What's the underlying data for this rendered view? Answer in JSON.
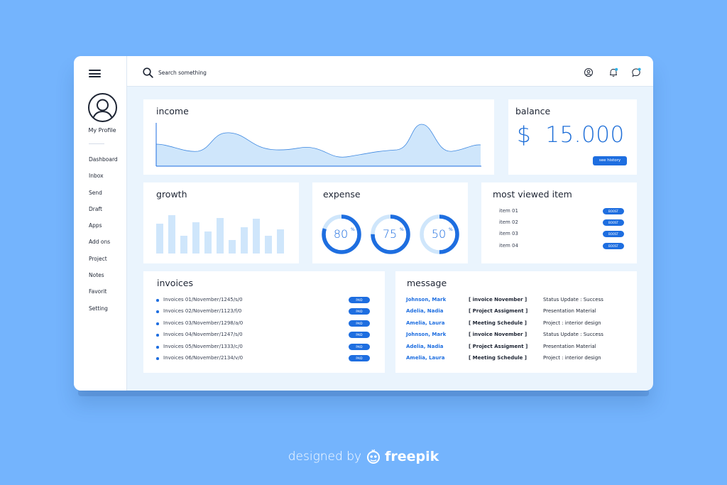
{
  "sidebar": {
    "profile_label": "My Profile",
    "items": [
      {
        "label": "Dashboard"
      },
      {
        "label": "Inbox"
      },
      {
        "label": "Send"
      },
      {
        "label": "Draft"
      },
      {
        "label": "Apps"
      },
      {
        "label": "Add ons"
      },
      {
        "label": "Project"
      },
      {
        "label": "Notes"
      },
      {
        "label": "Favorit"
      },
      {
        "label": "Setting"
      }
    ]
  },
  "header": {
    "search_placeholder": "Search something",
    "icons": [
      "user-icon",
      "bell-icon",
      "chat-icon"
    ]
  },
  "income": {
    "title": "income"
  },
  "balance": {
    "title": "balance",
    "currency": "$",
    "amount": "15.000",
    "button": "see history"
  },
  "growth": {
    "title": "growth"
  },
  "expense": {
    "title": "expense",
    "rings": [
      {
        "value": "80",
        "unit": "%",
        "fill": 0.8
      },
      {
        "value": "75",
        "unit": "%",
        "fill": 0.75
      },
      {
        "value": "50",
        "unit": "%",
        "fill": 0.5
      }
    ]
  },
  "most_viewed": {
    "title": "most viewed item",
    "items": [
      {
        "label": "item 01",
        "action": "BOOST"
      },
      {
        "label": "item 02",
        "action": "BOOST"
      },
      {
        "label": "item 03",
        "action": "BOOST"
      },
      {
        "label": "item 04",
        "action": "BOOST"
      }
    ]
  },
  "invoices": {
    "title": "invoices",
    "items": [
      {
        "label": "Invoices 01/November/1245/s/0",
        "status": "PAID"
      },
      {
        "label": "Invoices 02/November/1123/f/0",
        "status": "PAID"
      },
      {
        "label": "Invoices 03/November/1298/a/0",
        "status": "PAID"
      },
      {
        "label": "Invoices 04/November/1247/s/0",
        "status": "PAID"
      },
      {
        "label": "Invoices 05/November/1333/c/0",
        "status": "PAID"
      },
      {
        "label": "Invoices 06/November/2134/v/0",
        "status": "PAID"
      }
    ]
  },
  "message": {
    "title": "message",
    "rows": [
      {
        "name": "Johnson, Mark",
        "subject": "[ invoice November ]",
        "status": "Status Update : Success"
      },
      {
        "name": "Adelia, Nadia",
        "subject": "[ Project Assigment ]",
        "status": "Presentation Material"
      },
      {
        "name": "Amelia, Laura",
        "subject": "[ Meeting Schedule ]",
        "status": "Project : interior design"
      },
      {
        "name": "Johnson, Mark",
        "subject": "[ invoice November ]",
        "status": "Status Update : Success"
      },
      {
        "name": "Adelia, Nadia",
        "subject": "[ Project Assigment ]",
        "status": "Presentation Material"
      },
      {
        "name": "Amelia, Laura",
        "subject": "[ Meeting Schedule ]",
        "status": "Project : interior design"
      }
    ]
  },
  "footer": {
    "prefix": "designed by",
    "brand": "freepik"
  },
  "colors": {
    "background": "#74b4fd",
    "accent": "#1e6ee0",
    "panel": "#eaf4fd",
    "chart_fill": "#cfe6fb"
  }
}
